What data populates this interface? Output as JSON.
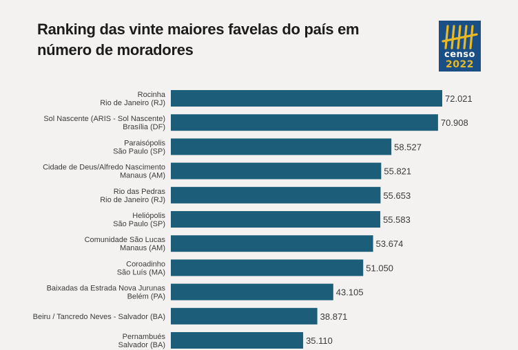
{
  "title": "Ranking das vinte maiores favelas do país em número de moradores",
  "logo": {
    "text": "censo",
    "year": "2022"
  },
  "colors": {
    "bar": "#1c5e79",
    "background": "#f3f2f0",
    "logo_bg": "#1a4f86",
    "logo_fg": "#e8b923"
  },
  "chart_data": {
    "type": "bar",
    "orientation": "horizontal",
    "title": "Ranking das vinte maiores favelas do país em número de moradores",
    "categories": [
      [
        "Rocinha",
        "Rio de Janeiro (RJ)"
      ],
      [
        "Sol Nascente (ARIS - Sol Nascente)",
        "Brasília (DF)"
      ],
      [
        "Paraisópolis",
        "São Paulo (SP)"
      ],
      [
        "Cidade de Deus/Alfredo Nascimento",
        "Manaus (AM)"
      ],
      [
        "Rio das Pedras",
        "Rio de Janeiro (RJ)"
      ],
      [
        "Heliópolis",
        "São Paulo (SP)"
      ],
      [
        "Comunidade São Lucas",
        "Manaus (AM)"
      ],
      [
        "Coroadinho",
        "São Luís (MA)"
      ],
      [
        "Baixadas da Estrada Nova Jurunas",
        "Belém (PA)"
      ],
      [
        "Beiru / Tancredo Neves - Salvador (BA)"
      ],
      [
        "Pernambués",
        "Salvador (BA)"
      ]
    ],
    "values": [
      72021,
      70908,
      58527,
      55821,
      55653,
      55583,
      53674,
      51050,
      43105,
      38871,
      35110
    ],
    "value_labels": [
      "72.021",
      "70.908",
      "58.527",
      "55.821",
      "55.653",
      "55.583",
      "53.674",
      "51.050",
      "43.105",
      "38.871",
      "35.110"
    ],
    "xlim": [
      0,
      72021
    ],
    "grid": false,
    "legend": "none"
  }
}
